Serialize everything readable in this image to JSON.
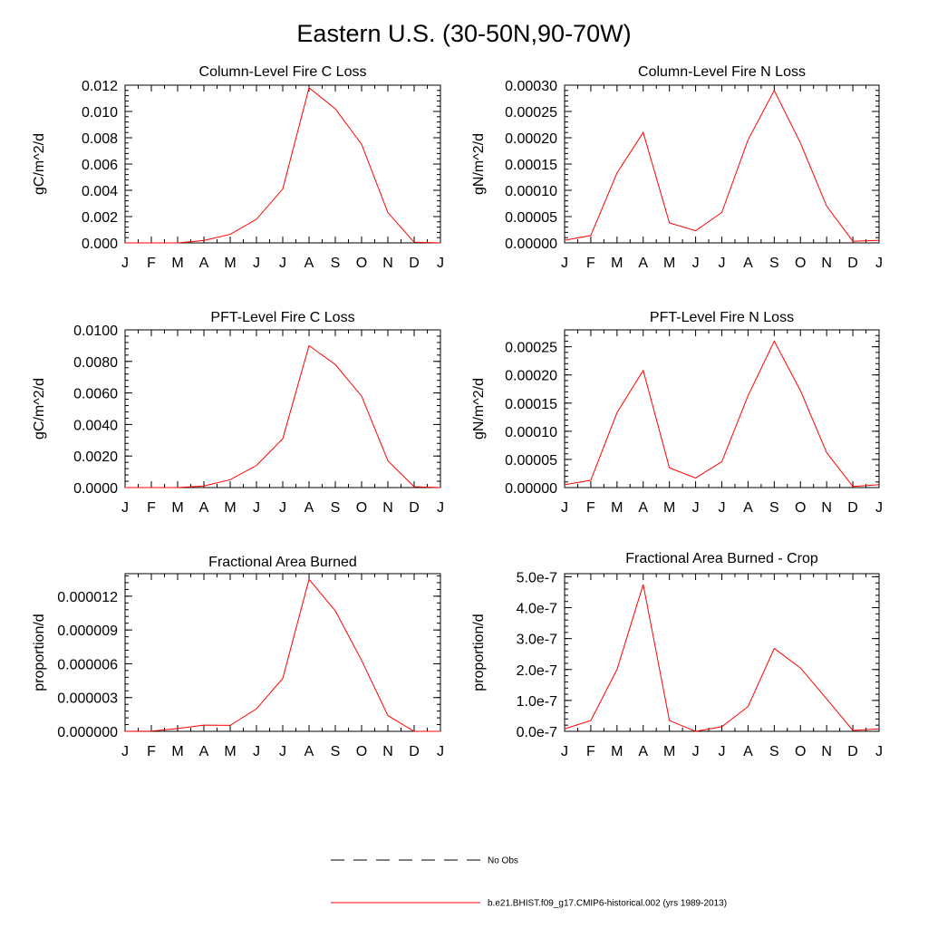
{
  "title": "Eastern U.S. (30-50N,90-70W)",
  "months": [
    "J",
    "F",
    "M",
    "A",
    "M",
    "J",
    "J",
    "A",
    "S",
    "O",
    "N",
    "D",
    "J"
  ],
  "legend": [
    {
      "label": "No Obs",
      "color": "#000000",
      "style": "dashed"
    },
    {
      "label": "b.e21.BHIST.f09_g17.CMIP6-historical.002 (yrs 1989-2013)",
      "color": "#ff0000",
      "style": "solid"
    }
  ],
  "chart_data": [
    {
      "type": "line",
      "title": "Column-Level Fire C Loss",
      "ylabel": "gC/m^2/d",
      "ylim": [
        0,
        0.012
      ],
      "yticks": [
        0.0,
        0.002,
        0.004,
        0.006,
        0.008,
        0.01,
        0.012
      ],
      "ytick_labels": [
        "0.000",
        "0.002",
        "0.004",
        "0.006",
        "0.008",
        "0.010",
        "0.012"
      ],
      "x": [
        "J",
        "F",
        "M",
        "A",
        "M",
        "J",
        "J",
        "A",
        "S",
        "O",
        "N",
        "D",
        "J"
      ],
      "series": [
        {
          "color": "#ff0000",
          "values": [
            0.0,
            0.0,
            0.0,
            0.00018,
            0.00065,
            0.0018,
            0.0041,
            0.0118,
            0.0102,
            0.0075,
            0.0023,
            5e-05,
            0.0
          ]
        }
      ]
    },
    {
      "type": "line",
      "title": "Column-Level Fire N Loss",
      "ylabel": "gN/m^2/d",
      "ylim": [
        0,
        0.0003
      ],
      "yticks": [
        0,
        5e-05,
        0.0001,
        0.00015,
        0.0002,
        0.00025,
        0.0003
      ],
      "ytick_labels": [
        "0.00000",
        "0.00005",
        "0.00010",
        "0.00015",
        "0.00020",
        "0.00025",
        "0.00030"
      ],
      "x": [
        "J",
        "F",
        "M",
        "A",
        "M",
        "J",
        "J",
        "A",
        "S",
        "O",
        "N",
        "D",
        "J"
      ],
      "series": [
        {
          "color": "#ff0000",
          "values": [
            5e-06,
            1.4e-05,
            0.000133,
            0.00021,
            3.8e-05,
            2.3e-05,
            5.8e-05,
            0.000196,
            0.00029,
            0.00019,
            7e-05,
            3e-06,
            5e-06
          ]
        }
      ]
    },
    {
      "type": "line",
      "title": "PFT-Level Fire C Loss",
      "ylabel": "gC/m^2/d",
      "ylim": [
        0,
        0.01
      ],
      "yticks": [
        0.0,
        0.002,
        0.004,
        0.006,
        0.008,
        0.01
      ],
      "ytick_labels": [
        "0.0000",
        "0.0020",
        "0.0040",
        "0.0060",
        "0.0080",
        "0.0100"
      ],
      "x": [
        "J",
        "F",
        "M",
        "A",
        "M",
        "J",
        "J",
        "A",
        "S",
        "O",
        "N",
        "D",
        "J"
      ],
      "series": [
        {
          "color": "#ff0000",
          "values": [
            0.0,
            0.0,
            0.0,
            0.0001,
            0.0005,
            0.0014,
            0.0031,
            0.009,
            0.0078,
            0.0058,
            0.0017,
            5e-05,
            0.0
          ]
        }
      ]
    },
    {
      "type": "line",
      "title": "PFT-Level Fire N Loss",
      "ylabel": "gN/m^2/d",
      "ylim": [
        0,
        0.00028
      ],
      "yticks": [
        0,
        5e-05,
        0.0001,
        0.00015,
        0.0002,
        0.00025
      ],
      "ytick_labels": [
        "0.00000",
        "0.00005",
        "0.00010",
        "0.00015",
        "0.00020",
        "0.00025"
      ],
      "x": [
        "J",
        "F",
        "M",
        "A",
        "M",
        "J",
        "J",
        "A",
        "S",
        "O",
        "N",
        "D",
        "J"
      ],
      "series": [
        {
          "color": "#ff0000",
          "values": [
            5e-06,
            1.3e-05,
            0.000133,
            0.000208,
            3.5e-05,
            1.7e-05,
            4.6e-05,
            0.000163,
            0.00026,
            0.000172,
            6.2e-05,
            2e-06,
            5e-06
          ]
        }
      ]
    },
    {
      "type": "line",
      "title": "Fractional Area Burned",
      "ylabel": "proportion/d",
      "ylim": [
        0,
        1.4e-05
      ],
      "yticks": [
        0,
        3e-06,
        6e-06,
        9e-06,
        1.2e-05
      ],
      "ytick_labels": [
        "0.000000",
        "0.000003",
        "0.000006",
        "0.000009",
        "0.000012"
      ],
      "x": [
        "J",
        "F",
        "M",
        "A",
        "M",
        "J",
        "J",
        "A",
        "S",
        "O",
        "N",
        "D",
        "J"
      ],
      "series": [
        {
          "color": "#ff0000",
          "values": [
            0.0,
            2e-08,
            2.5e-07,
            5.5e-07,
            5.3e-07,
            2e-06,
            4.7e-06,
            1.35e-05,
            1.07e-05,
            6.3e-06,
            1.4e-06,
            0.0,
            0.0
          ]
        }
      ]
    },
    {
      "type": "line",
      "title": "Fractional Area Burned - Crop",
      "ylabel": "proportion/d",
      "ylim": [
        0,
        5.1e-07
      ],
      "yticks": [
        0,
        1e-07,
        2e-07,
        3e-07,
        4e-07,
        5e-07
      ],
      "ytick_labels": [
        "0.0e-7",
        "1.0e-7",
        "2.0e-7",
        "3.0e-7",
        "4.0e-7",
        "5.0e-7"
      ],
      "x": [
        "J",
        "F",
        "M",
        "A",
        "M",
        "J",
        "J",
        "A",
        "S",
        "O",
        "N",
        "D",
        "J"
      ],
      "series": [
        {
          "color": "#ff0000",
          "values": [
            8e-09,
            3.5e-08,
            2e-07,
            4.75e-07,
            3.5e-08,
            0.0,
            1.5e-08,
            8e-08,
            2.68e-07,
            2.05e-07,
            1.05e-07,
            3e-09,
            8e-09
          ]
        }
      ]
    }
  ]
}
